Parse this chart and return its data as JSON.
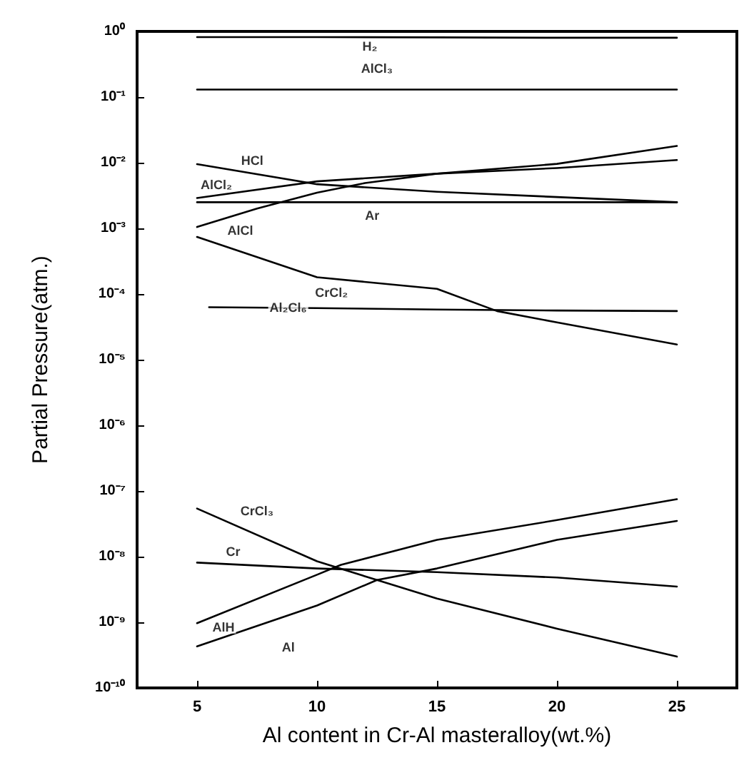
{
  "chart_data": {
    "type": "line",
    "xlabel": "Al content in Cr-Al masteralloy(wt.%)",
    "ylabel": "Partial Pressure(atm.)",
    "xlim": [
      2.5,
      27.5
    ],
    "xticks": [
      5,
      10,
      15,
      20,
      25
    ],
    "ylim": [
      1e-10,
      1
    ],
    "log": "y",
    "yticks": [
      {
        "value": 1,
        "label": "10⁰"
      },
      {
        "value": 0.1,
        "label": "10⁻¹"
      },
      {
        "value": 0.01,
        "label": "10⁻²"
      },
      {
        "value": 0.001,
        "label": "10⁻³"
      },
      {
        "value": 0.0001,
        "label": "10⁻⁴"
      },
      {
        "value": 1e-05,
        "label": "10⁻⁵"
      },
      {
        "value": 1e-06,
        "label": "10⁻⁶"
      },
      {
        "value": 1e-07,
        "label": "10⁻⁷"
      },
      {
        "value": 1e-08,
        "label": "10⁻⁸"
      },
      {
        "value": 1e-09,
        "label": "10⁻⁹"
      },
      {
        "value": 1e-10,
        "label": "10⁻¹⁰"
      }
    ],
    "grid": false,
    "legend": false,
    "marker": "none",
    "line_style": "solid",
    "series": [
      {
        "name": "H₂",
        "color": "#000000",
        "x": [
          5,
          10,
          15,
          20,
          25
        ],
        "values": [
          0.82,
          0.82,
          0.81,
          0.8,
          0.8
        ]
      },
      {
        "name": "AlCl₃",
        "color": "#000000",
        "x": [
          5,
          10,
          15,
          20,
          25
        ],
        "values": [
          0.13,
          0.13,
          0.13,
          0.13,
          0.13
        ]
      },
      {
        "name": "HCl",
        "color": "#000000",
        "x": [
          5,
          10,
          15,
          20,
          25
        ],
        "values": [
          0.0095,
          0.0047,
          0.0036,
          0.003,
          0.0025
        ]
      },
      {
        "name": "AlCl₂",
        "color": "#000000",
        "x": [
          5,
          10,
          15,
          20,
          25
        ],
        "values": [
          0.0029,
          0.0052,
          0.0068,
          0.0083,
          0.011
        ]
      },
      {
        "name": "Ar",
        "color": "#000000",
        "x": [
          5,
          10,
          15,
          20,
          25
        ],
        "values": [
          0.0025,
          0.0025,
          0.0025,
          0.0025,
          0.0025
        ]
      },
      {
        "name": "AlCl",
        "color": "#000000",
        "x": [
          5,
          7.5,
          10,
          12,
          15,
          20,
          25
        ],
        "values": [
          0.00105,
          0.002,
          0.0035,
          0.0049,
          0.0068,
          0.0096,
          0.018
        ]
      },
      {
        "name": "CrCl₂",
        "color": "#000000",
        "x": [
          5,
          10,
          15,
          17.5,
          20,
          25
        ],
        "values": [
          0.00074,
          0.00018,
          0.00012,
          5.5e-05,
          3.7e-05,
          1.7e-05
        ]
      },
      {
        "name": "Al₂Cl₆",
        "color": "#000000",
        "x": [
          5.5,
          10,
          15,
          20,
          25
        ],
        "values": [
          6.3e-05,
          6.1e-05,
          5.8e-05,
          5.6e-05,
          5.5e-05
        ]
      },
      {
        "name": "CrCl₃",
        "color": "#000000",
        "x": [
          5,
          10,
          12.5,
          15,
          20,
          25
        ],
        "values": [
          5.4e-08,
          8.5e-09,
          4.4e-09,
          2.3e-09,
          8e-10,
          3e-10
        ]
      },
      {
        "name": "Cr",
        "color": "#000000",
        "x": [
          5,
          10,
          15,
          20,
          25
        ],
        "values": [
          8.1e-09,
          6.6e-09,
          5.8e-09,
          4.8e-09,
          3.5e-09
        ]
      },
      {
        "name": "AlH",
        "color": "#000000",
        "x": [
          5,
          10,
          11,
          15,
          20,
          25
        ],
        "values": [
          9.7e-10,
          5.3e-09,
          7.5e-09,
          1.8e-08,
          3.6e-08,
          7.5e-08
        ]
      },
      {
        "name": "Al",
        "color": "#000000",
        "x": [
          5,
          10,
          12.5,
          15,
          20,
          25
        ],
        "values": [
          4.3e-10,
          1.8e-09,
          4.4e-09,
          6.6e-09,
          1.8e-08,
          3.5e-08
        ]
      }
    ]
  }
}
